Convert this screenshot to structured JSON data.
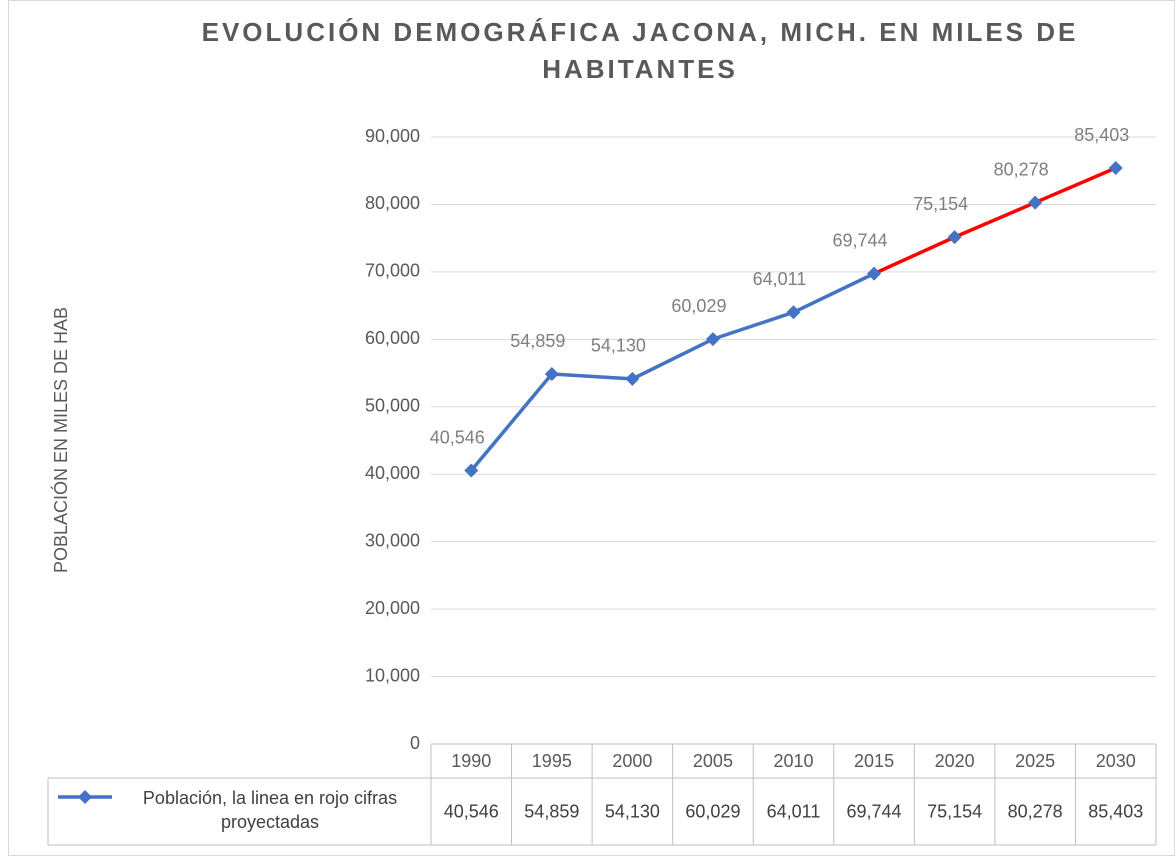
{
  "chart_data": {
    "type": "line",
    "title": "EVOLUCIÓN DEMOGRÁFICA JACONA, MICH. EN MILES DE HABITANTES",
    "y_label": "POBLACIÓN EN  MILES DE HAB",
    "categories": [
      "1990",
      "1995",
      "2000",
      "2005",
      "2010",
      "2015",
      "2020",
      "2025",
      "2030"
    ],
    "series": [
      {
        "name": "Población, la linea en rojo cifras proyectadas",
        "color": "#4472c4",
        "segment_colors": [
          "#4472c4",
          "#4472c4",
          "#4472c4",
          "#4472c4",
          "#4472c4",
          "#ff0000",
          "#ff0000",
          "#ff0000"
        ],
        "values": [
          40546,
          54859,
          54130,
          60029,
          64011,
          69744,
          75154,
          80278,
          85403
        ],
        "value_labels": [
          "40,546",
          "54,859",
          "54,130",
          "60,029",
          "64,011",
          "69,744",
          "75,154",
          "80,278",
          "85,403"
        ]
      }
    ],
    "ylim": [
      0,
      90000
    ],
    "yticks": [
      0,
      {
        "value": 10000,
        "label": "10,000"
      },
      {
        "value": 20000,
        "label": "20,000"
      },
      {
        "value": 30000,
        "label": "30,000"
      },
      {
        "value": 40000,
        "label": "40,000"
      },
      {
        "value": 50000,
        "label": "50,000"
      },
      {
        "value": 60000,
        "label": "60,000"
      },
      {
        "value": 70000,
        "label": "70,000"
      },
      {
        "value": 80000,
        "label": "80,000"
      },
      {
        "value": 90000,
        "label": "90,000"
      }
    ],
    "grid": true,
    "data_table": true
  }
}
